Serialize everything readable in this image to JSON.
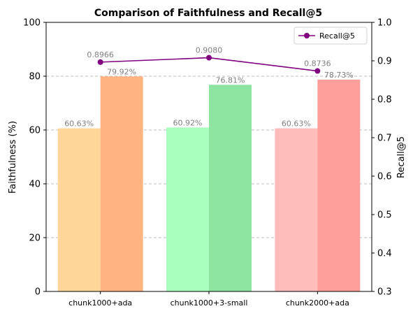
{
  "chart_data": {
    "type": "bar",
    "title": "Comparison of Faithfulness and Recall@5",
    "categories": [
      "chunk1000+ada",
      "chunk1000+3-small",
      "chunk2000+ada"
    ],
    "ylabel_left": "Faithfulness (%)",
    "ylabel_right": "Recall@5",
    "ylim_left": [
      0,
      100
    ],
    "ylim_right": [
      0.3,
      1.0
    ],
    "yticks_left": [
      "0",
      "20",
      "40",
      "60",
      "80",
      "100"
    ],
    "yticks_right": [
      "0.3",
      "0.4",
      "0.5",
      "0.6",
      "0.7",
      "0.8",
      "0.9",
      "1.0"
    ],
    "grid": "horizontal dashed",
    "legend_position": "top-right",
    "bar_groups": [
      {
        "category": "chunk1000+ada",
        "bars": [
          {
            "value": 60.63,
            "label": "60.63%",
            "color": "#ffd699"
          },
          {
            "value": 79.92,
            "label": "79.92%",
            "color": "#ffb482"
          }
        ]
      },
      {
        "category": "chunk1000+3-small",
        "bars": [
          {
            "value": 60.92,
            "label": "60.92%",
            "color": "#a8ffbe"
          },
          {
            "value": 76.81,
            "label": "76.81%",
            "color": "#8de5a1"
          }
        ]
      },
      {
        "category": "chunk2000+ada",
        "bars": [
          {
            "value": 60.63,
            "label": "60.63%",
            "color": "#ffbdba"
          },
          {
            "value": 78.73,
            "label": "78.73%",
            "color": "#ff9f9b"
          }
        ]
      }
    ],
    "line_series": {
      "name": "Recall@5",
      "color": "#800080",
      "values": [
        0.8966,
        0.908,
        0.8736
      ],
      "labels": [
        "0.8966",
        "0.9080",
        "0.8736"
      ]
    }
  }
}
